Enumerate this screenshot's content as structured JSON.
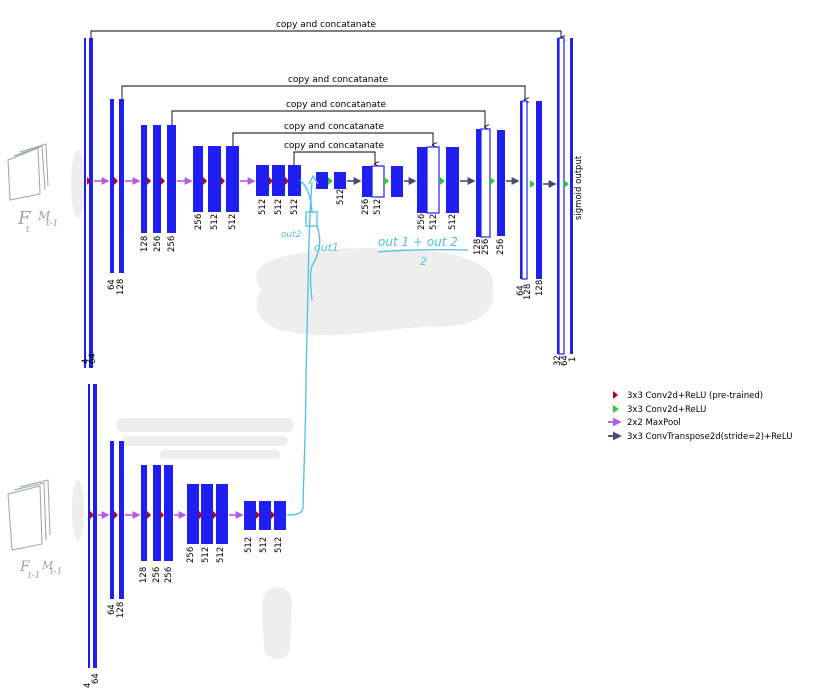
{
  "colors": {
    "block": "#1f1ff2",
    "conv_pretrained": "#b3001b",
    "conv": "#2fc92f",
    "maxpool": "#b25be8",
    "upconv": "#444a78",
    "annotation": "#4cc0e6",
    "smudge": "#eeeeec",
    "handwriting_gray": "#9aa4a4"
  },
  "skip_label": "copy and concatanate",
  "output_label": "sigmoid output",
  "inputs": {
    "top": {
      "F": "F",
      "F_sub": "t",
      "M": "M",
      "M_sub": "t-1"
    },
    "bottom": {
      "F": "F",
      "F_sub": "t-1",
      "M": "M",
      "M_sub": "t-1"
    }
  },
  "channels": {
    "top_encoder": [
      [
        "4",
        "64"
      ],
      [
        "64",
        "128"
      ],
      [
        "128",
        "256",
        "256"
      ],
      [
        "256",
        "512",
        "512"
      ],
      [
        "512",
        "512",
        "512"
      ]
    ],
    "top_decoder": [
      [
        "512"
      ],
      [
        "256",
        "512"
      ],
      [
        "256",
        "512",
        "512"
      ],
      [
        "128",
        "256",
        "256"
      ],
      [
        "64",
        "128",
        "128"
      ],
      [
        "32",
        "64",
        "1"
      ]
    ],
    "bottom_encoder": [
      [
        "4",
        "64"
      ],
      [
        "64",
        "128"
      ],
      [
        "128",
        "256",
        "256"
      ],
      [
        "256",
        "512",
        "512"
      ],
      [
        "512",
        "512",
        "512"
      ]
    ]
  },
  "annotations": {
    "out2": "out2",
    "out1": "out1",
    "formula_num": "out 1 + out 2",
    "formula_den": "2"
  },
  "legend": [
    {
      "label": "3x3 Conv2d+ReLU (pre-trained)",
      "icon": "red-triangle-icon"
    },
    {
      "label": "3x3 Conv2d+ReLU",
      "icon": "green-triangle-icon"
    },
    {
      "label": "2x2 MaxPool",
      "icon": "purple-arrow-icon"
    },
    {
      "label": "3x3 ConvTranspose2d(stride=2)+ReLU",
      "icon": "dark-arrow-icon"
    }
  ]
}
